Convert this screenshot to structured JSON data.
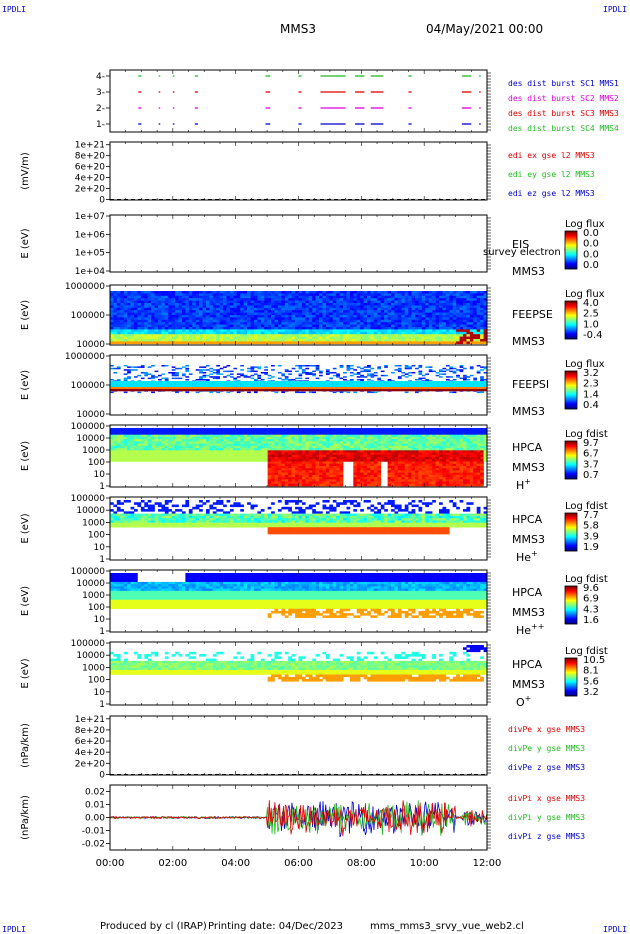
{
  "header": {
    "corner_left_top": "IPDLI",
    "corner_right_top": "IPDLI",
    "spacecraft": "MMS3",
    "datetime": "04/May/2021 00:00"
  },
  "footer": {
    "corner_left_bottom": "IPDLI",
    "corner_right_bottom": "IPDLI",
    "produced_by": "Produced by cl (IRAP)",
    "printing_date": "Printing date: 04/Dec/2023",
    "filename": "mms_mms3_srvy_vue_web2.cl"
  },
  "colors": {
    "red": "#e00000",
    "green": "#22bb22",
    "blue": "#0000cc",
    "magenta": "#dd00dd",
    "text": "#000000"
  },
  "time_axis": {
    "tick_labels": [
      "00:00",
      "02:00",
      "04:00",
      "06:00",
      "08:00",
      "10:00",
      "12:00"
    ],
    "range_hours": [
      0,
      12
    ]
  },
  "chart_data": [
    {
      "id": "burst",
      "type": "scatter",
      "ylabel": "",
      "ytick_labels": [
        "1-",
        "2-",
        "3-",
        "4-"
      ],
      "ylim": [
        0.5,
        4.5
      ],
      "legend": [
        {
          "text": "des dist burst SC1 MMS1",
          "color": "#0000cc"
        },
        {
          "text": "des dist burst SC2 MMS2",
          "color": "#dd00dd"
        },
        {
          "text": "des dist burst SC3 MMS3",
          "color": "#e00000"
        },
        {
          "text": "des dist burst SC4 MMS4",
          "color": "#22bb22"
        }
      ],
      "series": [
        {
          "level": 1,
          "color": "#0000cc",
          "intervals": [
            [
              0.9,
              1.0
            ],
            [
              1.55,
              1.6
            ],
            [
              2.0,
              2.05
            ],
            [
              2.7,
              2.8
            ],
            [
              4.95,
              5.1
            ],
            [
              6.0,
              6.1
            ],
            [
              6.7,
              7.5
            ],
            [
              7.8,
              8.1
            ],
            [
              8.3,
              8.7
            ],
            [
              9.5,
              9.6
            ],
            [
              11.2,
              11.5
            ],
            [
              11.75,
              11.8
            ]
          ]
        },
        {
          "level": 2,
          "color": "#dd00dd",
          "intervals": [
            [
              0.9,
              1.0
            ],
            [
              1.55,
              1.6
            ],
            [
              2.0,
              2.05
            ],
            [
              2.7,
              2.8
            ],
            [
              4.95,
              5.1
            ],
            [
              6.0,
              6.1
            ],
            [
              6.7,
              7.5
            ],
            [
              7.8,
              8.1
            ],
            [
              8.3,
              8.7
            ],
            [
              9.5,
              9.6
            ],
            [
              11.2,
              11.5
            ],
            [
              11.75,
              11.8
            ]
          ]
        },
        {
          "level": 3,
          "color": "#e00000",
          "intervals": [
            [
              0.9,
              1.0
            ],
            [
              1.55,
              1.6
            ],
            [
              2.0,
              2.05
            ],
            [
              2.7,
              2.8
            ],
            [
              4.95,
              5.1
            ],
            [
              6.0,
              6.1
            ],
            [
              6.7,
              7.5
            ],
            [
              7.8,
              8.1
            ],
            [
              8.3,
              8.7
            ],
            [
              9.5,
              9.6
            ],
            [
              11.2,
              11.5
            ],
            [
              11.75,
              11.8
            ]
          ]
        },
        {
          "level": 4,
          "color": "#22bb22",
          "intervals": [
            [
              0.9,
              1.0
            ],
            [
              1.55,
              1.6
            ],
            [
              2.0,
              2.05
            ],
            [
              2.7,
              2.8
            ],
            [
              4.95,
              5.1
            ],
            [
              6.0,
              6.1
            ],
            [
              6.7,
              7.5
            ],
            [
              7.8,
              8.1
            ],
            [
              8.3,
              8.7
            ],
            [
              9.5,
              9.6
            ],
            [
              11.2,
              11.5
            ],
            [
              11.75,
              11.8
            ]
          ]
        }
      ]
    },
    {
      "id": "edp-e",
      "type": "line",
      "ylabel": "(mV/m)",
      "ytick_labels": [
        "1e+21",
        "8e+20",
        "6e+20",
        "4e+20",
        "2e+20",
        "0"
      ],
      "ytick_values": [
        1e+21,
        8e+20,
        6e+20,
        4e+20,
        2e+20,
        0
      ],
      "ylim": [
        -1e+19,
        1.05e+21
      ],
      "zero_line": true,
      "legend": [
        {
          "text": "edi ex gse l2 MMS3",
          "color": "#e00000"
        },
        {
          "text": "edi ey gse l2 MMS3",
          "color": "#22bb22"
        },
        {
          "text": "edi ez gse l2 MMS3",
          "color": "#0000cc"
        }
      ]
    },
    {
      "id": "eis",
      "type": "heatmap",
      "ylabel": "E (eV)",
      "ytick_labels": [
        "1e+07",
        "1e+06",
        "1e+05",
        "1e+04"
      ],
      "ylog": true,
      "ylim": [
        10000.0,
        10000000.0
      ],
      "instrument": "EIS",
      "sub_label": "MMS3",
      "overflow_text": "survey electron to",
      "colorbar": {
        "title": "Log flux",
        "tick_labels": [
          "0.0",
          "0.0",
          "0.0",
          "0.0"
        ]
      },
      "empty": true
    },
    {
      "id": "feepse",
      "type": "heatmap",
      "ylabel": "E (eV)",
      "ytick_labels": [
        "1000000",
        "100000",
        "10000"
      ],
      "ylog": true,
      "ylim": [
        10000.0,
        1000000.0
      ],
      "instrument": "FEEPSE",
      "sub_label": "MMS3",
      "colorbar": {
        "title": "Log flux",
        "tick_labels": [
          "4.0",
          "2.5",
          "1.0",
          "-0.4"
        ]
      }
    },
    {
      "id": "feepsi",
      "type": "heatmap",
      "ylabel": "E (eV)",
      "ytick_labels": [
        "1000000",
        "100000",
        "10000"
      ],
      "ylog": true,
      "ylim": [
        10000.0,
        1000000.0
      ],
      "instrument": "FEEPSI",
      "sub_label": "MMS3",
      "colorbar": {
        "title": "Log flux",
        "tick_labels": [
          "3.2",
          "2.3",
          "1.4",
          "0.4"
        ]
      }
    },
    {
      "id": "hpca-h",
      "type": "heatmap",
      "ylabel": "E (eV)",
      "ytick_labels": [
        "100000",
        "10000",
        "1000",
        "100",
        "10",
        "1"
      ],
      "ylog": true,
      "ylim": [
        1,
        100000.0
      ],
      "instrument": "HPCA",
      "sub_label": "MMS3",
      "species": "H",
      "species_sup": "+",
      "colorbar": {
        "title": "Log fdist",
        "tick_labels": [
          "9.7",
          "6.7",
          "3.7",
          "0.7"
        ]
      }
    },
    {
      "id": "hpca-he",
      "type": "heatmap",
      "ylabel": "E (eV)",
      "ytick_labels": [
        "100000",
        "10000",
        "1000",
        "100",
        "10",
        "1"
      ],
      "ylog": true,
      "ylim": [
        1,
        100000.0
      ],
      "instrument": "HPCA",
      "sub_label": "MMS3",
      "species": "He",
      "species_sup": "+",
      "colorbar": {
        "title": "Log fdist",
        "tick_labels": [
          "7.7",
          "5.8",
          "3.9",
          "1.9"
        ]
      }
    },
    {
      "id": "hpca-hepp",
      "type": "heatmap",
      "ylabel": "E (eV)",
      "ytick_labels": [
        "100000",
        "10000",
        "1000",
        "100",
        "10",
        "1"
      ],
      "ylog": true,
      "ylim": [
        1,
        100000.0
      ],
      "instrument": "HPCA",
      "sub_label": "MMS3",
      "species": "He",
      "species_sup": "++",
      "colorbar": {
        "title": "Log fdist",
        "tick_labels": [
          "9.6",
          "6.9",
          "4.3",
          "1.6"
        ]
      }
    },
    {
      "id": "hpca-o",
      "type": "heatmap",
      "ylabel": "E (eV)",
      "ytick_labels": [
        "100000",
        "10000",
        "1000",
        "100",
        "10",
        "1"
      ],
      "ylog": true,
      "ylim": [
        1,
        100000.0
      ],
      "instrument": "HPCA",
      "sub_label": "MMS3",
      "species": "O",
      "species_sup": "+",
      "colorbar": {
        "title": "Log fdist",
        "tick_labels": [
          "10.5",
          "8.1",
          "5.6",
          "3.2"
        ]
      }
    },
    {
      "id": "divpe",
      "type": "line",
      "ylabel": "(nPa/km)",
      "ytick_labels": [
        "1e+21",
        "8e+20",
        "6e+20",
        "4e+20",
        "2e+20",
        "0"
      ],
      "ytick_values": [
        1e+21,
        8e+20,
        6e+20,
        4e+20,
        2e+20,
        0
      ],
      "ylim": [
        -1e+19,
        1.05e+21
      ],
      "zero_line": true,
      "legend": [
        {
          "text": "divPe x gse MMS3",
          "color": "#e00000"
        },
        {
          "text": "divPe y gse MMS3",
          "color": "#22bb22"
        },
        {
          "text": "divPe z gse MMS3",
          "color": "#0000cc"
        }
      ]
    },
    {
      "id": "divpi",
      "type": "line",
      "ylabel": "(nPa/km)",
      "ytick_labels": [
        "0.02",
        "0.01",
        "0.00",
        "-0.01",
        "-0.02"
      ],
      "ytick_values": [
        0.02,
        0.01,
        0.0,
        -0.01,
        -0.02
      ],
      "ylim": [
        -0.025,
        0.025
      ],
      "legend": [
        {
          "text": "divPi x gse MMS3",
          "color": "#e00000"
        },
        {
          "text": "divPi y gse MMS3",
          "color": "#22bb22"
        },
        {
          "text": "divPi z gse MMS3",
          "color": "#0000cc"
        }
      ],
      "active_intervals": [
        [
          5.0,
          11.0
        ]
      ],
      "amplitude_quiet": 0.001,
      "amplitude_active": 0.015
    }
  ]
}
